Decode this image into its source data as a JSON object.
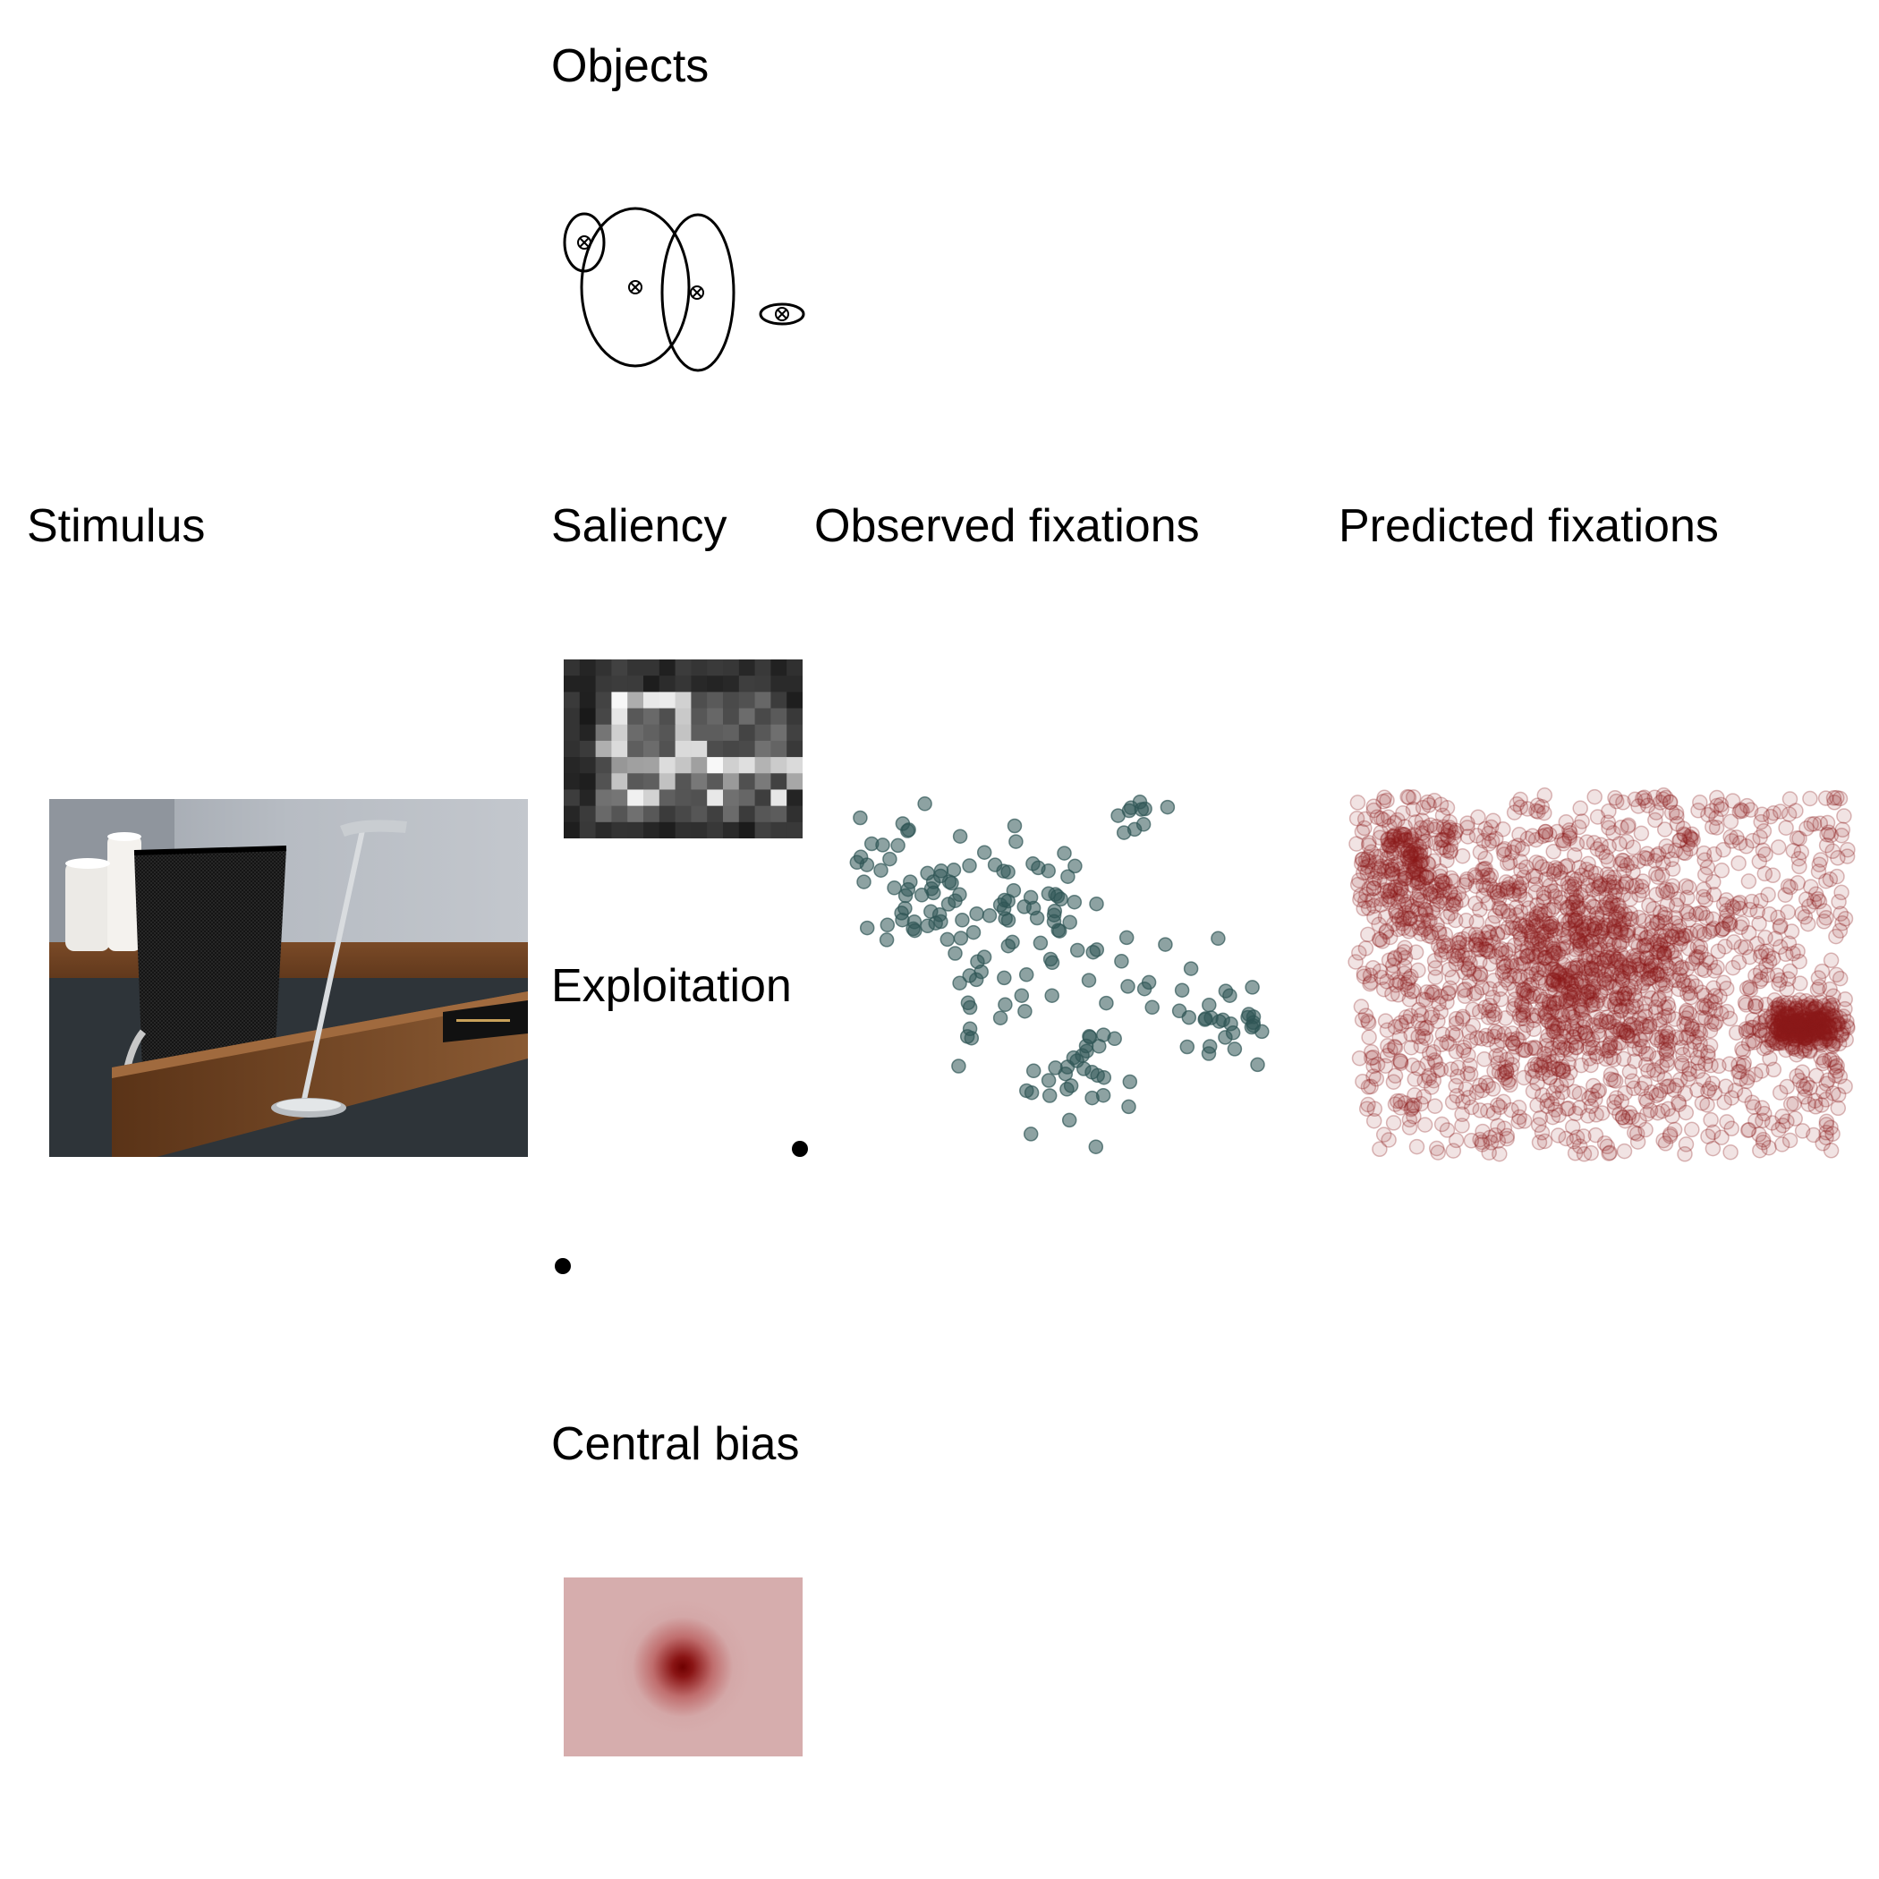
{
  "labels": {
    "objects": "Objects",
    "stimulus": "Stimulus",
    "saliency": "Saliency",
    "observed": "Observed fixations",
    "predicted": "Predicted fixations",
    "exploitation": "Exploitation",
    "central_bias": "Central bias"
  },
  "colors": {
    "observed_point": "#2f5656",
    "predicted_point": "#8b1a1a",
    "central_bias_peak": "#7a0000",
    "central_bias_edge": "#d6adad",
    "objects_stroke": "#000000"
  },
  "icons": {
    "object_center": "crossed-circle-icon"
  }
}
